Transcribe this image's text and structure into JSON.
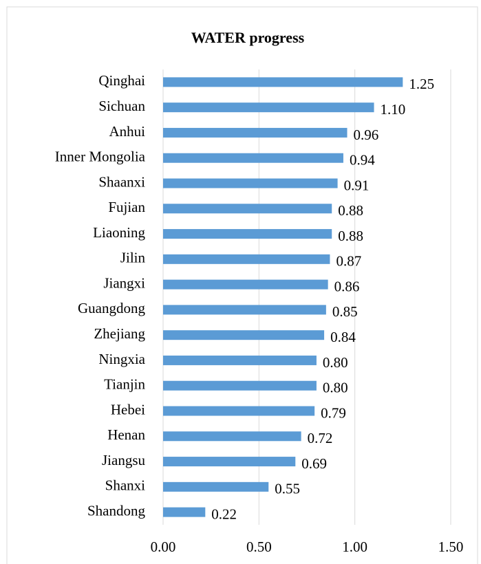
{
  "chart_data": {
    "type": "barh",
    "title": "WATER progress",
    "categories": [
      "Qinghai",
      "Sichuan",
      "Anhui",
      "Inner Mongolia",
      "Shaanxi",
      "Fujian",
      "Liaoning",
      "Jilin",
      "Jiangxi",
      "Guangdong",
      "Zhejiang",
      "Ningxia",
      "Tianjin",
      "Hebei",
      "Henan",
      "Jiangsu",
      "Shanxi",
      "Shandong"
    ],
    "values": [
      1.25,
      1.1,
      0.96,
      0.94,
      0.91,
      0.88,
      0.88,
      0.87,
      0.86,
      0.85,
      0.84,
      0.8,
      0.8,
      0.79,
      0.72,
      0.69,
      0.55,
      0.22
    ],
    "value_labels": [
      "1.25",
      "1.10",
      "0.96",
      "0.94",
      "0.91",
      "0.88",
      "0.88",
      "0.87",
      "0.86",
      "0.85",
      "0.84",
      "0.80",
      "0.80",
      "0.79",
      "0.72",
      "0.69",
      "0.55",
      "0.22"
    ],
    "color": "#5b9bd5",
    "xlim": [
      0,
      1.5
    ],
    "xticks": [
      {
        "value": 0,
        "label": "0.00"
      },
      {
        "value": 0.5,
        "label": "0.50"
      },
      {
        "value": 1,
        "label": "1.00"
      },
      {
        "value": 1.5,
        "label": "1.50"
      }
    ],
    "grid": true
  }
}
